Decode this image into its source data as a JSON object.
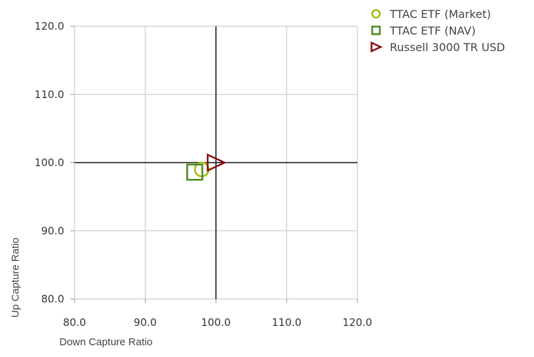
{
  "chart_data": {
    "type": "scatter",
    "xlabel": "Down Capture Ratio",
    "ylabel": "Up Capture Ratio",
    "xlim": [
      80,
      120
    ],
    "ylim": [
      80,
      120
    ],
    "x_ticks": [
      "80.0",
      "90.0",
      "100.0",
      "110.0",
      "120.0"
    ],
    "y_ticks": [
      "80.0",
      "90.0",
      "100.0",
      "110.0",
      "120.0"
    ],
    "x_tick_values": [
      80,
      90,
      100,
      110,
      120
    ],
    "y_tick_values": [
      80,
      90,
      100,
      110,
      120
    ],
    "reference_lines": {
      "x": 100,
      "y": 100
    },
    "grid": true,
    "legend_position": "top-right",
    "series": [
      {
        "name": "TTAC ETF (Market)",
        "marker": "circle",
        "color": "#a6b80f",
        "x": 98.0,
        "y": 99.0
      },
      {
        "name": "TTAC ETF (NAV)",
        "marker": "square",
        "color": "#4a8a1e",
        "x": 97.0,
        "y": 98.6
      },
      {
        "name": "Russell 3000 TR USD",
        "marker": "triangle-right",
        "color": "#8b0d0d",
        "x": 100.0,
        "y": 100.0
      }
    ]
  }
}
